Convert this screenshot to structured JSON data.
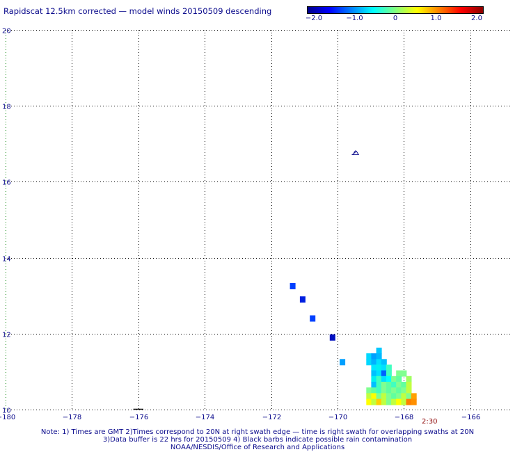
{
  "title": "Rapidscat 12.5km corrected — model winds 20150509 descending",
  "colorbar": {
    "ticks": [
      {
        "label": "−2.0",
        "value": -2.0
      },
      {
        "label": "−1.0",
        "value": -1.0
      },
      {
        "label": "0",
        "value": 0
      },
      {
        "label": "1.0",
        "value": 1.0
      },
      {
        "label": "2.0",
        "value": 2.0
      }
    ],
    "colors": [
      "#00008b",
      "#0000ff",
      "#0080ff",
      "#00ffff",
      "#80ff80",
      "#ffff00",
      "#ff8000",
      "#ff0000",
      "#8b0000"
    ]
  },
  "axes": {
    "x_ticks": [
      {
        "label": "−180",
        "value": -180
      },
      {
        "label": "−178",
        "value": -178
      },
      {
        "label": "−176",
        "value": -176
      },
      {
        "label": "−174",
        "value": -174
      },
      {
        "label": "−172",
        "value": -172
      },
      {
        "label": "−170",
        "value": -170
      },
      {
        "label": "−168",
        "value": -168
      },
      {
        "label": "−166",
        "value": -166
      }
    ],
    "y_ticks": [
      {
        "label": "10",
        "value": 10
      },
      {
        "label": "12",
        "value": 12
      },
      {
        "label": "14",
        "value": 14
      },
      {
        "label": "16",
        "value": 16
      },
      {
        "label": "18",
        "value": 18
      },
      {
        "label": "20",
        "value": 20
      }
    ],
    "xlim": [
      -180,
      -164.8
    ],
    "ylim": [
      10,
      20
    ]
  },
  "swath_time": "2:30",
  "notes": {
    "line1": "Note: 1) Times are GMT 2)Times correspond to 20N at right swath edge — time is right swath for overlapping swaths at 20N",
    "line2": "3)Data buffer is 22 hrs for 20150509 4) Black barbs indicate possible rain contamination",
    "line3": "NOAA/NESDIS/Office of Research and Applications"
  },
  "observations": [
    {
      "lon": -171.35,
      "lat": 13.25,
      "color": "#0040ff"
    },
    {
      "lon": -171.05,
      "lat": 12.9,
      "color": "#0020e0"
    },
    {
      "lon": -170.75,
      "lat": 12.4,
      "color": "#0040ff"
    },
    {
      "lon": -170.15,
      "lat": 11.9,
      "color": "#0010c0"
    },
    {
      "lon": -169.85,
      "lat": 11.25,
      "color": "#00a0ff"
    },
    {
      "lon": -168.75,
      "lat": 11.55,
      "color": "#00c8ff"
    },
    {
      "lon": -169.05,
      "lat": 11.4,
      "color": "#00d8ff"
    },
    {
      "lon": -168.9,
      "lat": 11.4,
      "color": "#00a0ff"
    },
    {
      "lon": -168.75,
      "lat": 11.4,
      "color": "#00b8ff"
    },
    {
      "lon": -169.05,
      "lat": 11.25,
      "color": "#00d8ff"
    },
    {
      "lon": -168.9,
      "lat": 11.25,
      "color": "#00b0ff"
    },
    {
      "lon": -168.75,
      "lat": 11.25,
      "color": "#00e0ff"
    },
    {
      "lon": -168.6,
      "lat": 11.25,
      "color": "#00c0ff"
    },
    {
      "lon": -168.9,
      "lat": 11.1,
      "color": "#00e8ff"
    },
    {
      "lon": -168.75,
      "lat": 11.1,
      "color": "#00f0f0"
    },
    {
      "lon": -168.6,
      "lat": 11.1,
      "color": "#00e0ff"
    },
    {
      "lon": -168.45,
      "lat": 11.1,
      "color": "#40ffc0"
    },
    {
      "lon": -168.9,
      "lat": 10.95,
      "color": "#00c0ff"
    },
    {
      "lon": -168.75,
      "lat": 10.95,
      "color": "#00e0ff"
    },
    {
      "lon": -168.6,
      "lat": 10.95,
      "color": "#0060ff"
    },
    {
      "lon": -168.45,
      "lat": 10.95,
      "color": "#40ffc0"
    },
    {
      "lon": -168.15,
      "lat": 10.95,
      "color": "#80ff90"
    },
    {
      "lon": -168.0,
      "lat": 10.95,
      "color": "#80ff90"
    },
    {
      "lon": -168.9,
      "lat": 10.8,
      "color": "#00f0f0"
    },
    {
      "lon": -168.75,
      "lat": 10.8,
      "color": "#40ffc0"
    },
    {
      "lon": -168.6,
      "lat": 10.8,
      "color": "#00e0ff"
    },
    {
      "lon": -168.45,
      "lat": 10.8,
      "color": "#00ffff"
    },
    {
      "lon": -168.3,
      "lat": 10.8,
      "color": "#80ff90"
    },
    {
      "lon": -168.15,
      "lat": 10.8,
      "color": "#60ffa0"
    },
    {
      "lon": -167.85,
      "lat": 10.8,
      "color": "#a0ff60"
    },
    {
      "lon": -168.9,
      "lat": 10.65,
      "color": "#00c0ff"
    },
    {
      "lon": -168.75,
      "lat": 10.65,
      "color": "#40ffc0"
    },
    {
      "lon": -168.6,
      "lat": 10.65,
      "color": "#80ff90"
    },
    {
      "lon": -168.45,
      "lat": 10.65,
      "color": "#60ffa0"
    },
    {
      "lon": -168.3,
      "lat": 10.65,
      "color": "#40ffc0"
    },
    {
      "lon": -168.15,
      "lat": 10.65,
      "color": "#80ff90"
    },
    {
      "lon": -168.0,
      "lat": 10.65,
      "color": "#60ffa0"
    },
    {
      "lon": -167.85,
      "lat": 10.65,
      "color": "#c0ff40"
    },
    {
      "lon": -169.05,
      "lat": 10.5,
      "color": "#80ff90"
    },
    {
      "lon": -168.9,
      "lat": 10.5,
      "color": "#60ffa0"
    },
    {
      "lon": -168.75,
      "lat": 10.5,
      "color": "#40ffc0"
    },
    {
      "lon": -168.6,
      "lat": 10.5,
      "color": "#80ff90"
    },
    {
      "lon": -168.45,
      "lat": 10.5,
      "color": "#60ffa0"
    },
    {
      "lon": -168.3,
      "lat": 10.5,
      "color": "#80ff90"
    },
    {
      "lon": -168.15,
      "lat": 10.5,
      "color": "#60ffa0"
    },
    {
      "lon": -168.0,
      "lat": 10.5,
      "color": "#80ff90"
    },
    {
      "lon": -167.85,
      "lat": 10.5,
      "color": "#c0ff40"
    },
    {
      "lon": -169.05,
      "lat": 10.35,
      "color": "#c0ff40"
    },
    {
      "lon": -168.9,
      "lat": 10.35,
      "color": "#ffff00"
    },
    {
      "lon": -168.75,
      "lat": 10.35,
      "color": "#80ff90"
    },
    {
      "lon": -168.6,
      "lat": 10.35,
      "color": "#c0ff40"
    },
    {
      "lon": -168.45,
      "lat": 10.35,
      "color": "#80ff90"
    },
    {
      "lon": -168.3,
      "lat": 10.35,
      "color": "#60ffa0"
    },
    {
      "lon": -168.15,
      "lat": 10.35,
      "color": "#80ff90"
    },
    {
      "lon": -168.0,
      "lat": 10.35,
      "color": "#c0ff40"
    },
    {
      "lon": -167.85,
      "lat": 10.35,
      "color": "#80ff90"
    },
    {
      "lon": -167.7,
      "lat": 10.35,
      "color": "#ffa000"
    },
    {
      "lon": -169.05,
      "lat": 10.2,
      "color": "#ffff00"
    },
    {
      "lon": -168.9,
      "lat": 10.2,
      "color": "#c0ff40"
    },
    {
      "lon": -168.75,
      "lat": 10.2,
      "color": "#ffd000"
    },
    {
      "lon": -168.6,
      "lat": 10.2,
      "color": "#c0ff40"
    },
    {
      "lon": -168.45,
      "lat": 10.2,
      "color": "#80ff90"
    },
    {
      "lon": -168.3,
      "lat": 10.2,
      "color": "#c0ff40"
    },
    {
      "lon": -168.15,
      "lat": 10.2,
      "color": "#ffff00"
    },
    {
      "lon": -168.0,
      "lat": 10.2,
      "color": "#c0ff40"
    },
    {
      "lon": -167.85,
      "lat": 10.2,
      "color": "#ff8000"
    },
    {
      "lon": -167.7,
      "lat": 10.2,
      "color": "#ff9000"
    }
  ],
  "barb_marker": {
    "lon": -169.45,
    "lat": 16.75
  }
}
